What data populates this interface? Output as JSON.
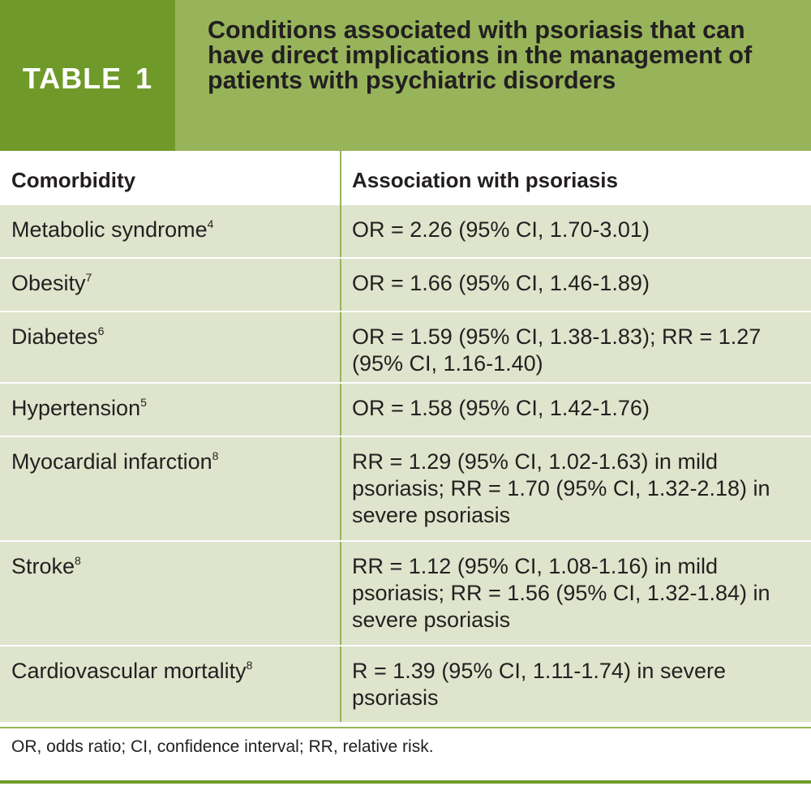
{
  "header": {
    "label": "TABLE 1",
    "title": "Conditions associated with psoriasis that can have direct implications in the management of patients with psychiatric disorders"
  },
  "columns": [
    "Comorbidity",
    "Association with psoriasis"
  ],
  "rows": [
    {
      "comorbidity": "Metabolic syndrome",
      "ref": "4",
      "association": "OR = 2.26 (95% CI, 1.70-3.01)"
    },
    {
      "comorbidity": "Obesity",
      "ref": "7",
      "association": "OR = 1.66 (95% CI, 1.46-1.89)"
    },
    {
      "comorbidity": "Diabetes",
      "ref": "6",
      "association": "OR = 1.59 (95% CI, 1.38-1.83); RR = 1.27 (95% CI, 1.16-1.40)"
    },
    {
      "comorbidity": "Hypertension",
      "ref": "5",
      "association": "OR = 1.58 (95% CI, 1.42-1.76)"
    },
    {
      "comorbidity": "Myocardial infarction",
      "ref": "8",
      "association": "RR = 1.29 (95% CI, 1.02-1.63) in mild psoriasis; RR = 1.70 (95% CI, 1.32-2.18) in severe psoriasis"
    },
    {
      "comorbidity": "Stroke",
      "ref": "8",
      "association": "RR = 1.12 (95% CI, 1.08-1.16) in mild psoriasis; RR = 1.56 (95% CI, 1.32-1.84) in severe psoriasis"
    },
    {
      "comorbidity": "Cardiovascular mortality",
      "ref": "8",
      "association": "R = 1.39 (95% CI, 1.11-1.74) in severe psoriasis"
    }
  ],
  "footnote": "OR, odds ratio; CI, confidence interval; RR, relative risk.",
  "colors": {
    "label_bg": "#6f9a2a",
    "title_bg": "#97b45a",
    "row_bg": "#dfe4cc"
  }
}
